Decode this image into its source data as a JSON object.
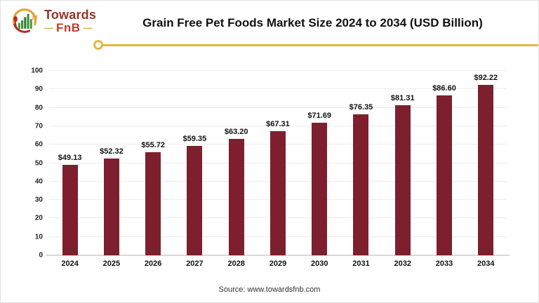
{
  "logo": {
    "name_top": "Towards",
    "name_bottom": "FnB",
    "dash": "—"
  },
  "header": {
    "title": "Grain Free Pet Foods Market Size 2024 to 2034 (USD Billion)"
  },
  "footer": {
    "source": "Source: www.towardsfnb.com"
  },
  "colors": {
    "bar": "#7e1f2e",
    "accent_gold": "#e5b83e",
    "logo_dark_red": "#943427",
    "logo_red": "#c23b2e",
    "logo_green": "#3f8f3a"
  },
  "chart_data": {
    "type": "bar",
    "title": "Grain Free Pet Foods Market Size 2024 to 2034 (USD Billion)",
    "categories": [
      "2024",
      "2025",
      "2026",
      "2027",
      "2028",
      "2029",
      "2030",
      "2031",
      "2032",
      "2033",
      "2034"
    ],
    "values": [
      49.13,
      52.32,
      55.72,
      59.35,
      63.2,
      67.31,
      71.69,
      76.35,
      81.31,
      86.6,
      92.22
    ],
    "value_labels": [
      "$49.13",
      "$52.32",
      "$55.72",
      "$59.35",
      "$63.20",
      "$67.31",
      "$71.69",
      "$76.35",
      "$81.31",
      "$86.60",
      "$92.22"
    ],
    "xlabel": "",
    "ylabel": "",
    "ylim": [
      0,
      100
    ],
    "ytick_step": 10,
    "yticks": [
      0,
      10,
      20,
      30,
      40,
      50,
      60,
      70,
      80,
      90,
      100
    ],
    "grid": true,
    "legend": "none",
    "bar_color": "#7e1f2e"
  }
}
